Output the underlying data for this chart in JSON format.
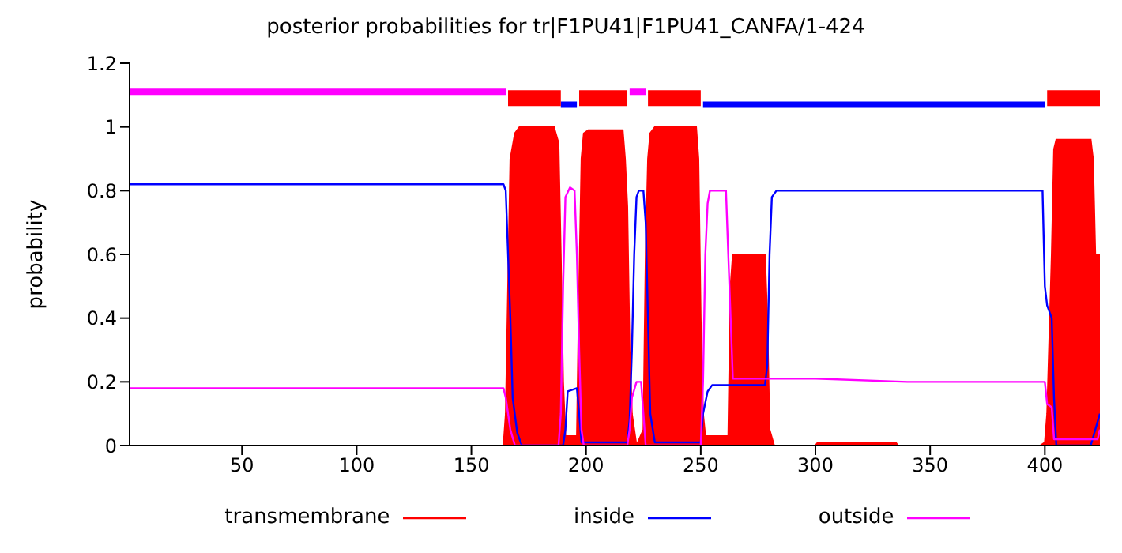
{
  "chart_data": {
    "type": "line",
    "title": "posterior probabilities for tr|F1PU41|F1PU41_CANFA/1-424",
    "ylabel": "probability",
    "xlim": [
      1,
      424
    ],
    "xticks": [
      50,
      100,
      150,
      200,
      250,
      300,
      350,
      400
    ],
    "ylim": [
      0,
      1.2
    ],
    "yticks": [
      0,
      0.2,
      0.4,
      0.6,
      0.8,
      1,
      1.2
    ],
    "legend": "bottom",
    "grid": false,
    "series": [
      {
        "name": "transmembrane",
        "type": "area",
        "color": "#ff0000",
        "x": [
          1,
          164,
          165,
          166,
          167,
          169,
          171,
          186,
          188,
          189,
          190,
          191,
          196,
          197,
          198,
          199,
          201,
          216,
          217,
          218,
          219,
          220,
          222,
          225,
          226,
          227,
          228,
          230,
          248,
          249,
          250,
          251,
          252,
          262,
          263,
          264,
          278,
          279,
          280,
          282,
          300,
          301,
          335,
          336,
          398,
          400,
          401,
          402,
          403,
          404,
          405,
          420,
          421,
          422,
          424
        ],
        "values": [
          0,
          0,
          0.1,
          0.5,
          0.9,
          0.98,
          1,
          1,
          0.95,
          0.6,
          0.2,
          0.03,
          0.03,
          0.5,
          0.9,
          0.98,
          0.99,
          0.99,
          0.9,
          0.75,
          0.3,
          0.1,
          0,
          0.05,
          0.6,
          0.9,
          0.98,
          1,
          1,
          0.9,
          0.4,
          0.1,
          0.03,
          0.03,
          0.5,
          0.6,
          0.6,
          0.4,
          0.05,
          0,
          0,
          0.01,
          0.01,
          0,
          0,
          0.01,
          0.1,
          0.35,
          0.6,
          0.93,
          0.96,
          0.96,
          0.9,
          0.6,
          0.6
        ]
      },
      {
        "name": "inside",
        "color": "#0000ff",
        "x": [
          1,
          164,
          165,
          166,
          167,
          168,
          170,
          172,
          190,
          191,
          192,
          196,
          197,
          198,
          218,
          219,
          220,
          221,
          222,
          223,
          225,
          226,
          227,
          228,
          230,
          250,
          251,
          253,
          255,
          278,
          279,
          280,
          281,
          283,
          399,
          400,
          401,
          403,
          404,
          405,
          420,
          424
        ],
        "values": [
          0.82,
          0.82,
          0.8,
          0.6,
          0.4,
          0.15,
          0.04,
          0,
          0,
          0.05,
          0.17,
          0.18,
          0.1,
          0.01,
          0.01,
          0.08,
          0.3,
          0.6,
          0.78,
          0.8,
          0.8,
          0.7,
          0.4,
          0.1,
          0.01,
          0.01,
          0.1,
          0.17,
          0.19,
          0.19,
          0.25,
          0.6,
          0.78,
          0.8,
          0.8,
          0.5,
          0.44,
          0.4,
          0.15,
          0,
          0,
          0.1
        ]
      },
      {
        "name": "outside",
        "color": "#ff00ff",
        "x": [
          1,
          164,
          165,
          167,
          169,
          188,
          189,
          190,
          191,
          193,
          195,
          196,
          197,
          198,
          199,
          218,
          219,
          220,
          222,
          224,
          225,
          226,
          250,
          251,
          252,
          253,
          254,
          261,
          262,
          264,
          300,
          340,
          400,
          401,
          403,
          404,
          423,
          424
        ],
        "values": [
          0.18,
          0.18,
          0.15,
          0.05,
          0,
          0,
          0.1,
          0.5,
          0.78,
          0.81,
          0.8,
          0.6,
          0.3,
          0.05,
          0,
          0,
          0.05,
          0.15,
          0.2,
          0.2,
          0.1,
          0,
          0,
          0.2,
          0.6,
          0.76,
          0.8,
          0.8,
          0.6,
          0.21,
          0.21,
          0.2,
          0.2,
          0.13,
          0.12,
          0.02,
          0.02,
          0.05
        ]
      },
      {
        "color": "#ff00ff",
        "x": [
          1,
          165,
          190,
          219,
          226
        ],
        "values": [
          1.11,
          1.11,
          null,
          1.11,
          1.11
        ]
      },
      {
        "color": "#0000ff",
        "x": [
          189,
          196,
          220,
          251,
          400
        ],
        "values": [
          1.07,
          1.07,
          null,
          1.07,
          1.07
        ]
      },
      {
        "color": "#ff0000",
        "x": [
          166,
          189,
          193,
          197,
          218,
          222,
          227,
          250,
          260,
          401,
          424
        ],
        "values": [
          1.09,
          1.09,
          null,
          1.09,
          1.09,
          null,
          1.09,
          1.09,
          null,
          1.09,
          1.09
        ]
      }
    ]
  }
}
